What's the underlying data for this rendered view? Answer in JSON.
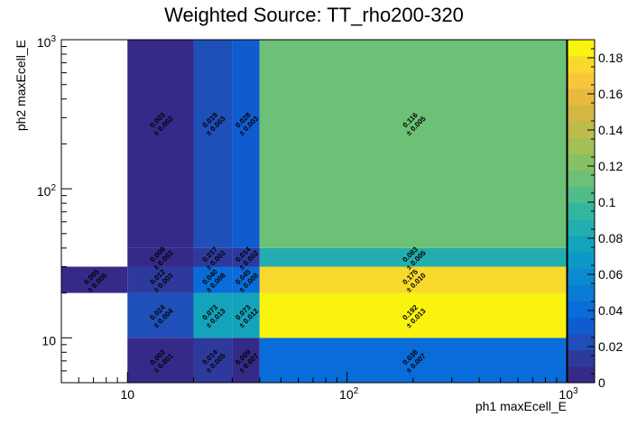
{
  "chart_data": {
    "type": "heatmap",
    "title": "Weighted Source: TT_rho200-320",
    "xlabel": "ph1 maxEcell_E",
    "ylabel": "ph2 maxEcell_E",
    "x_scale": "log",
    "y_scale": "log",
    "xlim": [
      5,
      1000
    ],
    "ylim": [
      5,
      1000
    ],
    "x_tick_labels": [
      "10",
      "10²",
      "10³"
    ],
    "y_tick_labels": [
      "10",
      "10²",
      "10³"
    ],
    "x_edges": [
      5,
      10,
      20,
      30,
      40,
      1000
    ],
    "y_edges": [
      5,
      10,
      20,
      30,
      40,
      1000
    ],
    "zlim": [
      0,
      0.19
    ],
    "colorbar_ticks": [
      "0",
      "0.02",
      "0.04",
      "0.06",
      "0.08",
      "0.1",
      "0.12",
      "0.14",
      "0.16",
      "0.18"
    ],
    "palette": [
      "#352a87",
      "#2d3a9c",
      "#1f4fb8",
      "#0f5ccf",
      "#0a6cd8",
      "#0a7bd6",
      "#0b8ad0",
      "#0d99c8",
      "#13a4bc",
      "#22aeae",
      "#34b69e",
      "#4fbd8a",
      "#6cc176",
      "#88c162",
      "#a3bf55",
      "#bdbb4a",
      "#d4b743",
      "#e8b93e",
      "#f8c63a",
      "#f9d92c",
      "#f9f30f"
    ],
    "cells": [
      {
        "x": [
          10,
          20
        ],
        "y": [
          5,
          10
        ],
        "value": 0.002,
        "label": "0.002",
        "error": "± 0.001"
      },
      {
        "x": [
          20,
          30
        ],
        "y": [
          5,
          10
        ],
        "value": 0.014,
        "label": "0.014",
        "error": "± 0.005"
      },
      {
        "x": [
          30,
          40
        ],
        "y": [
          5,
          10
        ],
        "value": 0.009,
        "label": "0.009",
        "error": "± 0.007"
      },
      {
        "x": [
          40,
          1000
        ],
        "y": [
          5,
          10
        ],
        "value": 0.038,
        "label": "0.038",
        "error": "± 0.007"
      },
      {
        "x": [
          10,
          20
        ],
        "y": [
          10,
          20
        ],
        "value": 0.024,
        "label": "0.024",
        "error": "± 0.004"
      },
      {
        "x": [
          20,
          30
        ],
        "y": [
          10,
          20
        ],
        "value": 0.073,
        "label": "0.073",
        "error": "± 0.013"
      },
      {
        "x": [
          30,
          40
        ],
        "y": [
          10,
          20
        ],
        "value": 0.073,
        "label": "0.073",
        "error": "± 0.012"
      },
      {
        "x": [
          40,
          1000
        ],
        "y": [
          10,
          20
        ],
        "value": 0.192,
        "label": "0.192",
        "error": "± 0.013"
      },
      {
        "x": [
          5,
          10
        ],
        "y": [
          20,
          30
        ],
        "value": 0.005,
        "label": "0.005",
        "error": "± 0.005"
      },
      {
        "x": [
          10,
          20
        ],
        "y": [
          20,
          30
        ],
        "value": 0.012,
        "label": "0.012",
        "error": "± 0.003"
      },
      {
        "x": [
          20,
          30
        ],
        "y": [
          20,
          30
        ],
        "value": 0.04,
        "label": "0.040",
        "error": "± 0.008"
      },
      {
        "x": [
          30,
          40
        ],
        "y": [
          20,
          30
        ],
        "value": 0.045,
        "label": "0.045",
        "error": "± 0.008"
      },
      {
        "x": [
          40,
          1000
        ],
        "y": [
          20,
          30
        ],
        "value": 0.175,
        "label": "0.175",
        "error": "± 0.010"
      },
      {
        "x": [
          10,
          20
        ],
        "y": [
          30,
          40
        ],
        "value": 0.009,
        "label": "0.009",
        "error": "± 0.003"
      },
      {
        "x": [
          20,
          30
        ],
        "y": [
          30,
          40
        ],
        "value": 0.017,
        "label": "0.017",
        "error": "± 0.003"
      },
      {
        "x": [
          30,
          40
        ],
        "y": [
          30,
          40
        ],
        "value": 0.014,
        "label": "0.014",
        "error": "± 0.002"
      },
      {
        "x": [
          40,
          1000
        ],
        "y": [
          30,
          40
        ],
        "value": 0.083,
        "label": "0.083",
        "error": "± 0.005"
      },
      {
        "x": [
          10,
          20
        ],
        "y": [
          40,
          1000
        ],
        "value": 0.003,
        "label": "0.003",
        "error": "± 0.002"
      },
      {
        "x": [
          20,
          30
        ],
        "y": [
          40,
          1000
        ],
        "value": 0.019,
        "label": "0.019",
        "error": "± 0.003"
      },
      {
        "x": [
          30,
          40
        ],
        "y": [
          40,
          1000
        ],
        "value": 0.028,
        "label": "0.028",
        "error": "± 0.003"
      },
      {
        "x": [
          40,
          1000
        ],
        "y": [
          40,
          1000
        ],
        "value": 0.116,
        "label": "0.116",
        "error": "± 0.005"
      }
    ]
  }
}
